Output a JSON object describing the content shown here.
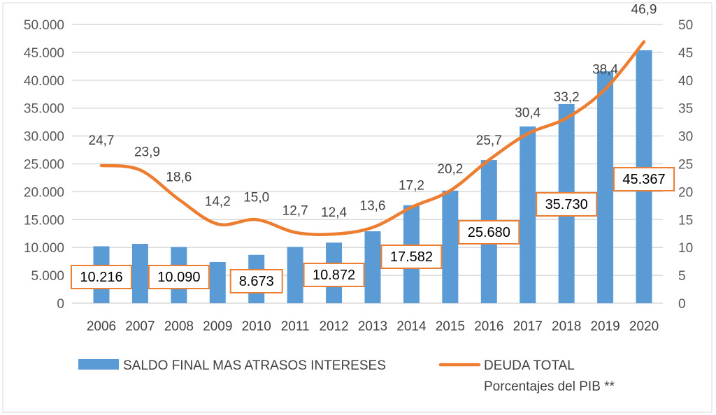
{
  "chart_data": {
    "type": "bar+line",
    "categories": [
      "2006",
      "2007",
      "2008",
      "2009",
      "2010",
      "2011",
      "2012",
      "2013",
      "2014",
      "2015",
      "2016",
      "2017",
      "2018",
      "2019",
      "2020"
    ],
    "series": [
      {
        "name": "SALDO FINAL MAS ATRASOS INTERESES",
        "type": "bar",
        "axis": "left",
        "color": "#5B9BD5",
        "values": [
          10216,
          10650,
          10090,
          7400,
          8673,
          10100,
          10872,
          12900,
          17582,
          20200,
          25680,
          31700,
          35730,
          41600,
          45367
        ],
        "data_labels": [
          "10.216",
          null,
          "10.090",
          null,
          "8.673",
          null,
          "10.872",
          null,
          "17.582",
          null,
          "25.680",
          null,
          "35.730",
          null,
          "45.367"
        ]
      },
      {
        "name": "DEUDA TOTAL",
        "name_line2": "Porcentajes del PIB **",
        "type": "line",
        "axis": "right",
        "color": "#ED7D31",
        "values": [
          24.7,
          23.9,
          18.6,
          14.2,
          15.0,
          12.7,
          12.4,
          13.6,
          17.2,
          20.2,
          25.7,
          30.4,
          33.2,
          38.4,
          46.9
        ],
        "data_labels": [
          "24,7",
          "23,9",
          "18,6",
          "14,2",
          "15,0",
          "12,7",
          "12,4",
          "13,6",
          "17,2",
          "20,2",
          "25,7",
          "30,4",
          "33,2",
          "38,4",
          "46,9"
        ]
      }
    ],
    "y_left": {
      "range": [
        0,
        50000
      ],
      "ticks": [
        "0",
        "5.000",
        "10.000",
        "15.000",
        "20.000",
        "25.000",
        "30.000",
        "35.000",
        "40.000",
        "45.000",
        "50.000"
      ]
    },
    "y_right": {
      "range": [
        0,
        50
      ],
      "ticks": [
        "0",
        "5",
        "10",
        "15",
        "20",
        "25",
        "30",
        "35",
        "40",
        "45",
        "50"
      ]
    },
    "grid": true,
    "legend_position": "bottom"
  }
}
